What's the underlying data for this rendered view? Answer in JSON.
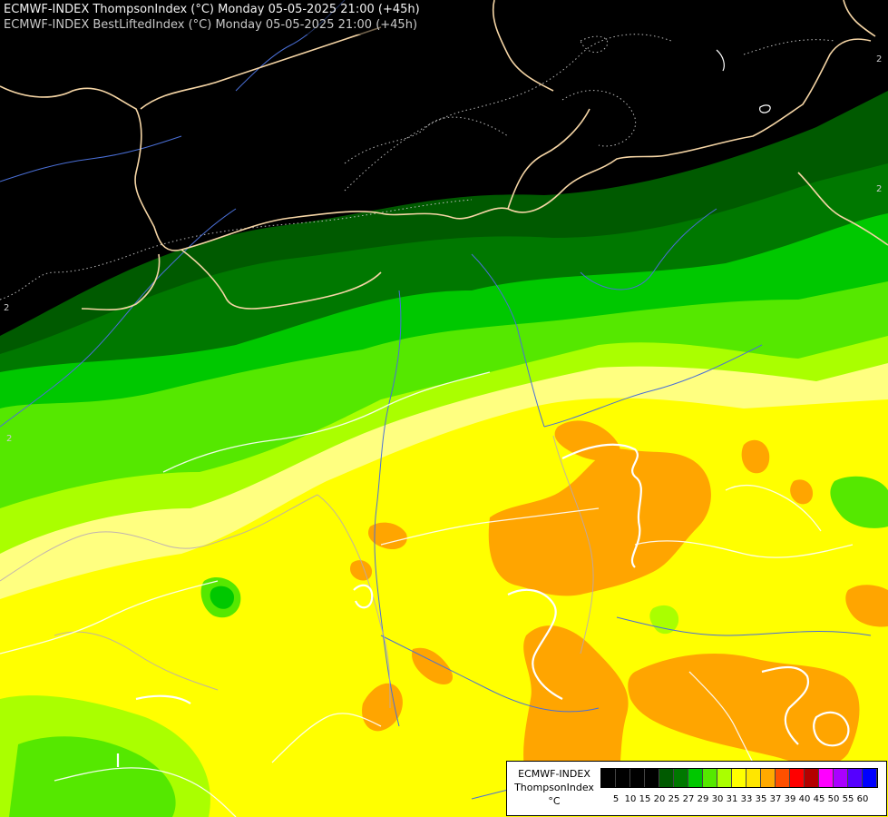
{
  "header": {
    "line1": "ECMWF-INDEX ThompsonIndex (°C) Monday 05-05-2025 21:00 (+45h)",
    "line2": "ECMWF-INDEX BestLiftedIndex (°C) Monday 05-05-2025 21:00 (+45h)"
  },
  "legend": {
    "title_line1": "ECMWF-INDEX",
    "title_line2": "ThompsonIndex",
    "unit": "°C",
    "ticks": [
      "5",
      "10",
      "15",
      "20",
      "25",
      "27",
      "29",
      "30",
      "31",
      "33",
      "35",
      "37",
      "39",
      "40",
      "45",
      "50",
      "55",
      "60"
    ],
    "colors": [
      "#000000",
      "#000000",
      "#000000",
      "#000000",
      "#005a00",
      "#007800",
      "#00c800",
      "#55e800",
      "#aaff00",
      "#ffff00",
      "#ffe600",
      "#ffaa00",
      "#ff5000",
      "#ff0000",
      "#b40000",
      "#ff00ff",
      "#aa00ff",
      "#5500ff",
      "#0000ff"
    ]
  },
  "map_colors": {
    "background": "#000000",
    "dark_green": "#005a00",
    "green": "#007800",
    "bright_green": "#00c800",
    "light_green": "#55e800",
    "yellow_green": "#aaff00",
    "pale_yellow": "#ffff80",
    "yellow": "#ffff00",
    "orange": "#ffa500",
    "border": "#f5d5a5",
    "river": "#4a6fd6",
    "contour": "#ffffff"
  },
  "contour_labels": [
    "2",
    "2",
    "2",
    "2"
  ]
}
